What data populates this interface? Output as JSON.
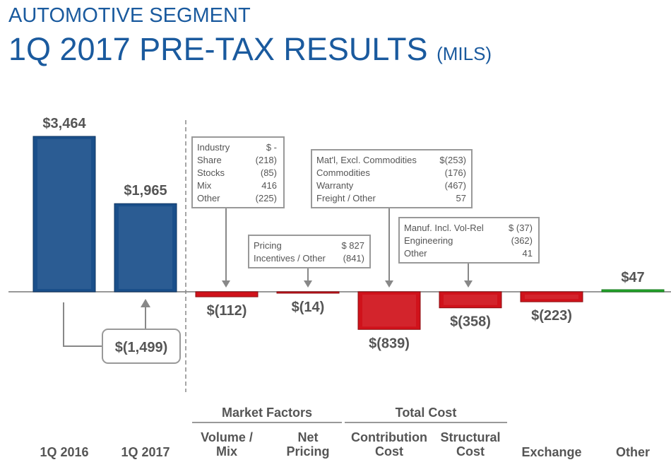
{
  "header": {
    "title": "AUTOMOTIVE SEGMENT",
    "subtitle": "1Q 2017 PRE-TAX RESULTS",
    "unit": "(MILS)"
  },
  "chart_data": {
    "type": "bar",
    "categories": [
      "1Q 2016",
      "1Q 2017",
      "Volume / Mix",
      "Net Pricing",
      "Contribution Cost",
      "Structural Cost",
      "Exchange",
      "Other"
    ],
    "values": [
      3464,
      1965,
      -112,
      -14,
      -839,
      -358,
      -223,
      47
    ],
    "data_labels": [
      "$3,464",
      "$1,965",
      "$(112)",
      "$(14)",
      "$(839)",
      "$(358)",
      "$(223)",
      "$47"
    ],
    "colors": {
      "total": "#1a4f8a",
      "negative": "#d0121b",
      "positive": "#22a82a"
    },
    "groups": [
      {
        "label": "Market Factors",
        "categories": [
          "Volume / Mix",
          "Net Pricing"
        ]
      },
      {
        "label": "Total Cost",
        "categories": [
          "Contribution Cost",
          "Structural Cost"
        ]
      }
    ],
    "change_label": "$(1,499)",
    "callouts": [
      {
        "rows": [
          [
            "Industry",
            "$      -"
          ],
          [
            "Share",
            "(218)"
          ],
          [
            "Stocks",
            "(85)"
          ],
          [
            "Mix",
            "416"
          ],
          [
            "Other",
            "(225)"
          ]
        ]
      },
      {
        "rows": [
          [
            "Pricing",
            "$ 827"
          ],
          [
            "Incentives / Other",
            "(841)"
          ]
        ]
      },
      {
        "rows": [
          [
            "Mat'l, Excl. Commodities",
            "$(253)"
          ],
          [
            "Commodities",
            "(176)"
          ],
          [
            "Warranty",
            "(467)"
          ],
          [
            "Freight / Other",
            "57"
          ]
        ]
      },
      {
        "rows": [
          [
            "Manuf. Incl. Vol-Rel",
            "$ (37)"
          ],
          [
            "Engineering",
            "(362)"
          ],
          [
            "Other",
            "41"
          ]
        ]
      }
    ]
  }
}
